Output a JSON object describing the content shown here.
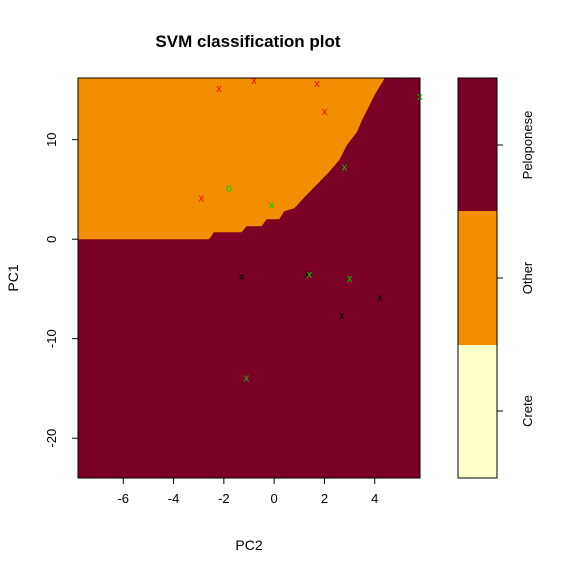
{
  "chart_data": {
    "type": "scatter",
    "title": "SVM classification plot",
    "xlabel": "PC2",
    "ylabel": "PC1",
    "xlim": [
      -7.8,
      5.8
    ],
    "ylim": [
      -24,
      16.2
    ],
    "x_ticks": [
      -6,
      -4,
      -2,
      0,
      2,
      4
    ],
    "y_ticks": [
      -20,
      -10,
      0,
      10
    ],
    "classes": [
      "Crete",
      "Other",
      "Peloponese"
    ],
    "class_colors": {
      "Crete": "#ffffc8",
      "Other": "#f28e00",
      "Peloponese": "#7a0026"
    },
    "decision_boundary_Other": [
      [
        -7.8,
        0
      ],
      [
        -2.6,
        0
      ],
      [
        -2.5,
        0.3
      ],
      [
        -2.4,
        0.7
      ],
      [
        -1.3,
        0.7
      ],
      [
        -1.1,
        1.3
      ],
      [
        -0.5,
        1.3
      ],
      [
        -0.3,
        2.0
      ],
      [
        0.2,
        2.0
      ],
      [
        0.4,
        2.8
      ],
      [
        0.8,
        3.1
      ],
      [
        1.2,
        4.2
      ],
      [
        1.7,
        5.5
      ],
      [
        2.2,
        6.8
      ],
      [
        2.6,
        8.0
      ],
      [
        2.9,
        9.5
      ],
      [
        3.3,
        10.8
      ],
      [
        3.5,
        12.0
      ],
      [
        3.8,
        13.5
      ],
      [
        4.0,
        14.5
      ],
      [
        4.4,
        16.2
      ]
    ],
    "points": [
      {
        "x": -2.2,
        "y": 15.2,
        "marker": "x",
        "color": "#ff0000"
      },
      {
        "x": -0.8,
        "y": 16.0,
        "marker": "x",
        "color": "#ff0000"
      },
      {
        "x": 1.7,
        "y": 15.7,
        "marker": "x",
        "color": "#ff0000"
      },
      {
        "x": 2.0,
        "y": 12.9,
        "marker": "x",
        "color": "#ff0000"
      },
      {
        "x": -2.9,
        "y": 4.2,
        "marker": "x",
        "color": "#ff0000"
      },
      {
        "x": -1.8,
        "y": 5.2,
        "marker": "o",
        "color": "#00cc00"
      },
      {
        "x": -0.1,
        "y": 3.5,
        "marker": "x",
        "color": "#00cc00"
      },
      {
        "x": 2.8,
        "y": 7.3,
        "marker": "x",
        "color": "#00cc00"
      },
      {
        "x": 5.8,
        "y": 14.4,
        "marker": "x",
        "color": "#00cc00"
      },
      {
        "x": -1.3,
        "y": -3.7,
        "marker": "x",
        "color": "#000000"
      },
      {
        "x": 1.3,
        "y": -3.4,
        "marker": "x",
        "color": "#000000"
      },
      {
        "x": 1.4,
        "y": -3.5,
        "marker": "x",
        "color": "#00cc00"
      },
      {
        "x": 3.0,
        "y": -3.9,
        "marker": "x",
        "color": "#00cc00"
      },
      {
        "x": 4.2,
        "y": -5.8,
        "marker": "x",
        "color": "#000000"
      },
      {
        "x": 2.7,
        "y": -7.6,
        "marker": "x",
        "color": "#000000"
      },
      {
        "x": -1.1,
        "y": -13.9,
        "marker": "x",
        "color": "#00cc00"
      }
    ],
    "legend_placement": "right"
  }
}
